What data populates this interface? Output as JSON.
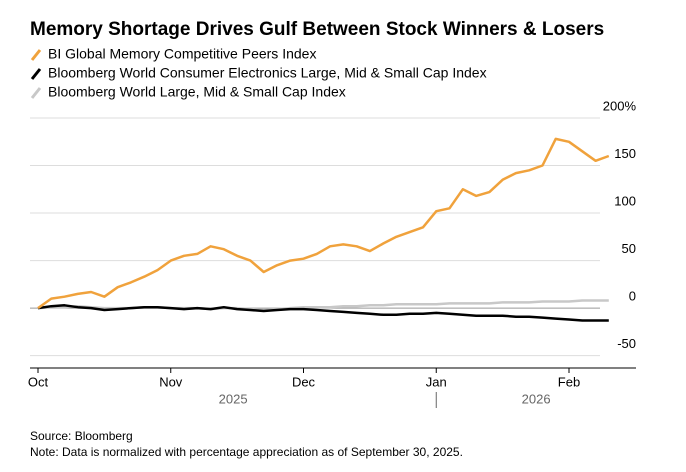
{
  "chart_data": {
    "type": "line",
    "title": "Memory Shortage Drives Gulf Between Stock Winners & Losers",
    "categories": [
      "Oct",
      null,
      null,
      null,
      null,
      null,
      null,
      null,
      null,
      null,
      "Nov",
      null,
      null,
      null,
      null,
      null,
      null,
      null,
      null,
      null,
      "Dec",
      null,
      null,
      null,
      null,
      null,
      null,
      null,
      null,
      null,
      "Jan",
      null,
      null,
      null,
      null,
      null,
      null,
      null,
      null,
      null,
      "Feb",
      null,
      null,
      null
    ],
    "x_years": [
      "2025",
      "2026"
    ],
    "series": [
      {
        "name": "BI Global Memory Competitive Peers Index",
        "color": "#f0a23c",
        "values": [
          0,
          10,
          12,
          15,
          17,
          12,
          22,
          27,
          33,
          40,
          50,
          55,
          57,
          65,
          62,
          55,
          50,
          38,
          45,
          50,
          52,
          57,
          65,
          67,
          65,
          60,
          68,
          75,
          80,
          85,
          102,
          105,
          125,
          118,
          122,
          135,
          142,
          145,
          150,
          178,
          175,
          165,
          155,
          160
        ]
      },
      {
        "name": "Bloomberg World Consumer Electronics Large, Mid & Small Cap Index",
        "color": "#000000",
        "values": [
          0,
          2,
          3,
          1,
          0,
          -2,
          -1,
          0,
          1,
          1,
          0,
          -1,
          0,
          -1,
          1,
          -1,
          -2,
          -3,
          -2,
          -1,
          -1,
          -2,
          -3,
          -4,
          -5,
          -6,
          -7,
          -7,
          -6,
          -6,
          -5,
          -6,
          -7,
          -8,
          -8,
          -8,
          -9,
          -9,
          -10,
          -11,
          -12,
          -13,
          -13,
          -13
        ]
      },
      {
        "name": "Bloomberg World Large, Mid & Small Cap Index",
        "color": "#c8c8c8",
        "values": [
          0,
          1,
          1,
          2,
          1,
          0,
          0,
          0,
          1,
          1,
          0,
          0,
          0,
          -1,
          0,
          0,
          -1,
          -2,
          -1,
          0,
          1,
          1,
          1,
          2,
          2,
          3,
          3,
          4,
          4,
          4,
          4,
          5,
          5,
          5,
          5,
          6,
          6,
          6,
          7,
          7,
          7,
          8,
          8,
          8
        ]
      }
    ],
    "ylim": [
      -63,
      200
    ],
    "yticks": [
      {
        "value": 200,
        "label": "200%"
      },
      150,
      100,
      50,
      0,
      -50
    ],
    "grid": true,
    "source": "Source: Bloomberg",
    "note": "Note: Data is normalized with percentage appreciation as of September 30, 2025."
  }
}
